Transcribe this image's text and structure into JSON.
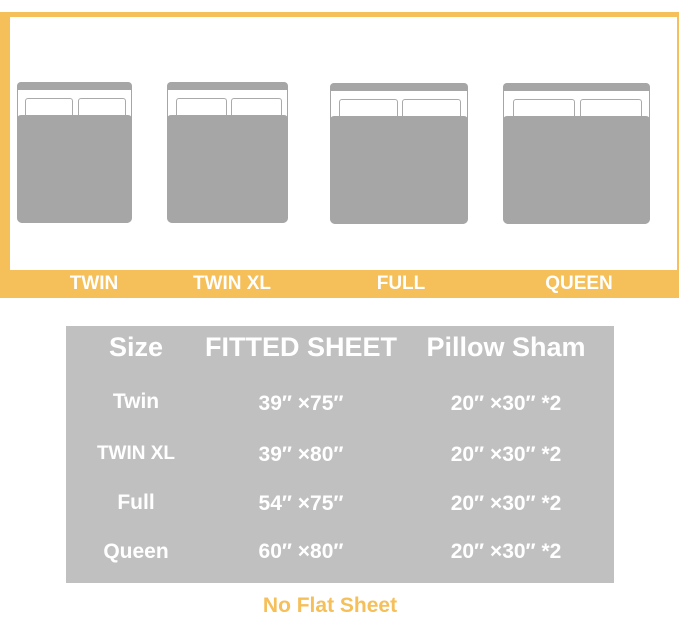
{
  "brand_color": "#f5bf5a",
  "bed_labels": [
    "TWIN",
    "TWIN XL",
    "FULL",
    "QUEEN"
  ],
  "table": {
    "headers": [
      "Size",
      "FITTED SHEET",
      "Pillow Sham"
    ],
    "rows": [
      [
        "Twin",
        "39″ ×75″",
        "20″ ×30″ *2"
      ],
      [
        "TWIN XL",
        "39″ ×80″",
        "20″ ×30″ *2"
      ],
      [
        "Full",
        "54″ ×75″",
        "20″ ×30″ *2"
      ],
      [
        "Queen",
        "60″ ×80″",
        "20″ ×30″ *2"
      ]
    ]
  },
  "note": "No Flat Sheet"
}
